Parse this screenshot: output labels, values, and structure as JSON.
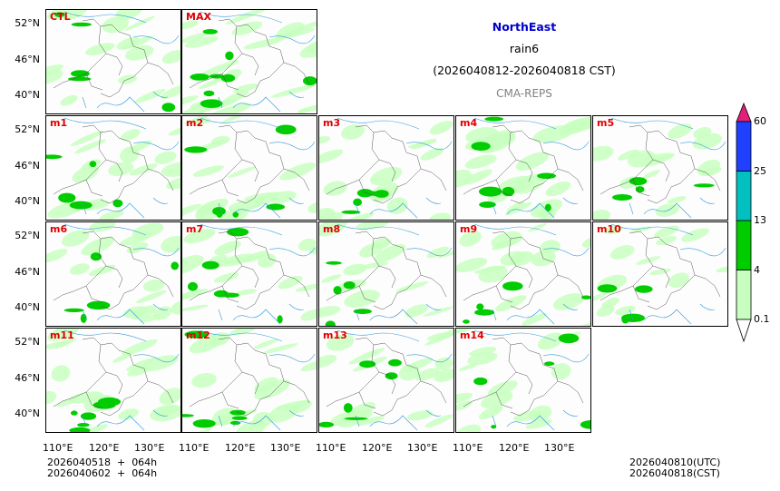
{
  "title": {
    "region": "NorthEast",
    "variable": "rain6",
    "period": "(2026040812-2026040818 CST)",
    "model": "CMA-REPS"
  },
  "panels": [
    {
      "label": "CTL",
      "coverage": 0.35
    },
    {
      "label": "MAX",
      "coverage": 0.75
    },
    {
      "label": "m1",
      "coverage": 0.4
    },
    {
      "label": "m2",
      "coverage": 0.45
    },
    {
      "label": "m3",
      "coverage": 0.35
    },
    {
      "label": "m4",
      "coverage": 0.6
    },
    {
      "label": "m5",
      "coverage": 0.3
    },
    {
      "label": "m6",
      "coverage": 0.4
    },
    {
      "label": "m7",
      "coverage": 0.45
    },
    {
      "label": "m8",
      "coverage": 0.4
    },
    {
      "label": "m9",
      "coverage": 0.35
    },
    {
      "label": "m10",
      "coverage": 0.3
    },
    {
      "label": "m11",
      "coverage": 0.45
    },
    {
      "label": "m12",
      "coverage": 0.45
    },
    {
      "label": "m13",
      "coverage": 0.45
    },
    {
      "label": "m14",
      "coverage": 0.35
    }
  ],
  "lat_ticks": [
    "52°N",
    "46°N",
    "40°N"
  ],
  "lon_ticks": [
    "110°E",
    "120°E",
    "130°E"
  ],
  "colorbar": {
    "levels": [
      "0.1",
      "4",
      "13",
      "25",
      "60"
    ],
    "colors": [
      "#ffffff",
      "#c8ffc0",
      "#00cc00",
      "#00c0c0",
      "#2040ff",
      "#e0207a"
    ]
  },
  "footer": {
    "left_line1": "2026040518  +  064h",
    "left_line2": "2026040602  +  064h",
    "right_line1": "2026040810(UTC)",
    "right_line2": "2026040818(CST)"
  }
}
